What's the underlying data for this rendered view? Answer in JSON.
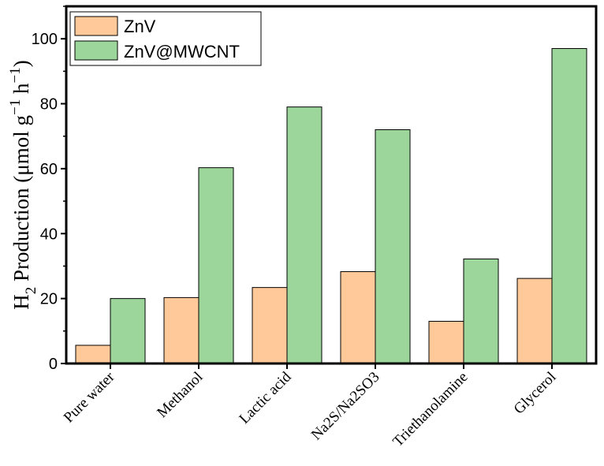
{
  "chart_data": {
    "type": "bar",
    "categories": [
      "Pure water",
      "Methanol",
      "Lactic acid",
      "Na2S/Na2SO3",
      "Triethanolamine",
      "Glycerol"
    ],
    "series": [
      {
        "name": "ZnV",
        "values": [
          5.6,
          20.3,
          23.4,
          28.3,
          13.0,
          26.2
        ],
        "color": "#FFC999"
      },
      {
        "name": "ZnV@MWCNT",
        "values": [
          20.0,
          60.3,
          79.0,
          72.0,
          32.2,
          97.0
        ],
        "color": "#9CD69A"
      }
    ],
    "title": "",
    "xlabel": "",
    "ylabel": {
      "base": "H",
      "sub": "2",
      "text": " Production (μmol g",
      "sup1": "−1",
      "mid": " h",
      "sup2": "−1",
      "end": ")"
    },
    "ylim": [
      0,
      110
    ],
    "yticks": [
      0,
      20,
      40,
      60,
      80,
      100
    ],
    "legend_position": "top-left",
    "grid": false
  }
}
